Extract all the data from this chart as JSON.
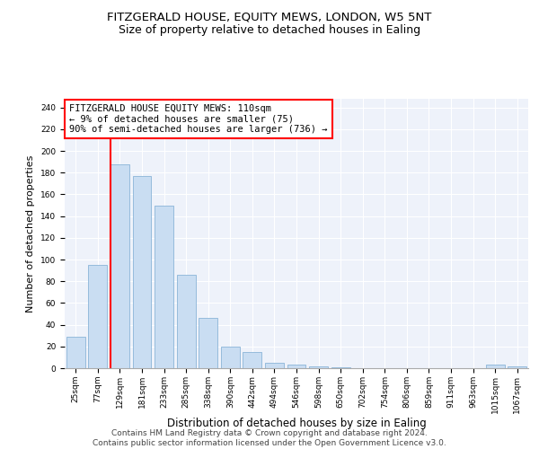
{
  "title1": "FITZGERALD HOUSE, EQUITY MEWS, LONDON, W5 5NT",
  "title2": "Size of property relative to detached houses in Ealing",
  "xlabel": "Distribution of detached houses by size in Ealing",
  "ylabel": "Number of detached properties",
  "categories": [
    "25sqm",
    "77sqm",
    "129sqm",
    "181sqm",
    "233sqm",
    "285sqm",
    "338sqm",
    "390sqm",
    "442sqm",
    "494sqm",
    "546sqm",
    "598sqm",
    "650sqm",
    "702sqm",
    "754sqm",
    "806sqm",
    "859sqm",
    "911sqm",
    "963sqm",
    "1015sqm",
    "1067sqm"
  ],
  "values": [
    29,
    95,
    188,
    177,
    150,
    86,
    46,
    20,
    15,
    5,
    3,
    2,
    1,
    0,
    0,
    0,
    0,
    0,
    0,
    3,
    2
  ],
  "bar_color": "#c9ddf2",
  "bar_edgecolor": "#8ab4d8",
  "ylim": [
    0,
    248
  ],
  "yticks": [
    0,
    20,
    40,
    60,
    80,
    100,
    120,
    140,
    160,
    180,
    200,
    220,
    240
  ],
  "red_line_x": 1.575,
  "annotation_line1": "FITZGERALD HOUSE EQUITY MEWS: 110sqm",
  "annotation_line2": "← 9% of detached houses are smaller (75)",
  "annotation_line3": "90% of semi-detached houses are larger (736) →",
  "footer1": "Contains HM Land Registry data © Crown copyright and database right 2024.",
  "footer2": "Contains public sector information licensed under the Open Government Licence v3.0.",
  "bg_color": "#eef2fa",
  "title1_fontsize": 9.5,
  "title2_fontsize": 9,
  "xlabel_fontsize": 8.5,
  "ylabel_fontsize": 8,
  "annotation_fontsize": 7.5,
  "tick_fontsize": 6.5,
  "footer_fontsize": 6.5
}
